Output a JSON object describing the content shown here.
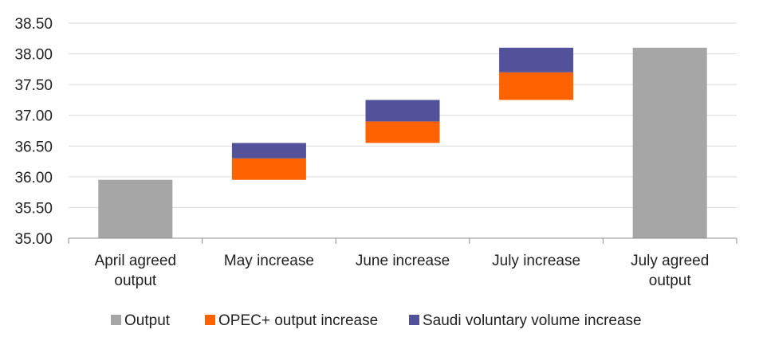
{
  "chart_data": {
    "type": "bar",
    "subtype": "stacked-waterfall",
    "title": "",
    "xlabel": "",
    "ylabel": "",
    "ylim": [
      35.0,
      38.5
    ],
    "ytick_step": 0.5,
    "y_tick_labels": [
      "35.00",
      "35.50",
      "36.00",
      "36.50",
      "37.00",
      "37.50",
      "38.00",
      "38.50"
    ],
    "categories": [
      [
        "April agreed",
        "output"
      ],
      [
        "May increase"
      ],
      [
        "June increase"
      ],
      [
        "July increase"
      ],
      [
        "July agreed",
        "output"
      ]
    ],
    "grid": true,
    "legend_position": "bottom",
    "bars": [
      {
        "segments": [
          {
            "series": "Output",
            "from": 35.0,
            "to": 35.95
          }
        ]
      },
      {
        "segments": [
          {
            "series": "OPEC+ output increase",
            "from": 35.95,
            "to": 36.3
          },
          {
            "series": "Saudi voluntary volume increase",
            "from": 36.3,
            "to": 36.55
          }
        ]
      },
      {
        "segments": [
          {
            "series": "OPEC+ output increase",
            "from": 36.55,
            "to": 36.9
          },
          {
            "series": "Saudi voluntary volume increase",
            "from": 36.9,
            "to": 37.25
          }
        ]
      },
      {
        "segments": [
          {
            "series": "OPEC+ output increase",
            "from": 37.25,
            "to": 37.7
          },
          {
            "series": "Saudi voluntary volume increase",
            "from": 37.7,
            "to": 38.1
          }
        ]
      },
      {
        "segments": [
          {
            "series": "Output",
            "from": 35.0,
            "to": 38.1
          }
        ]
      }
    ],
    "series": [
      {
        "name": "Output",
        "color": "#a6a6a6"
      },
      {
        "name": "OPEC+ output increase",
        "color": "#ff6200"
      },
      {
        "name": "Saudi voluntary volume increase",
        "color": "#525199"
      }
    ],
    "colors": {
      "grid": "#d9d9d9",
      "axis": "#8c8c8c"
    }
  }
}
